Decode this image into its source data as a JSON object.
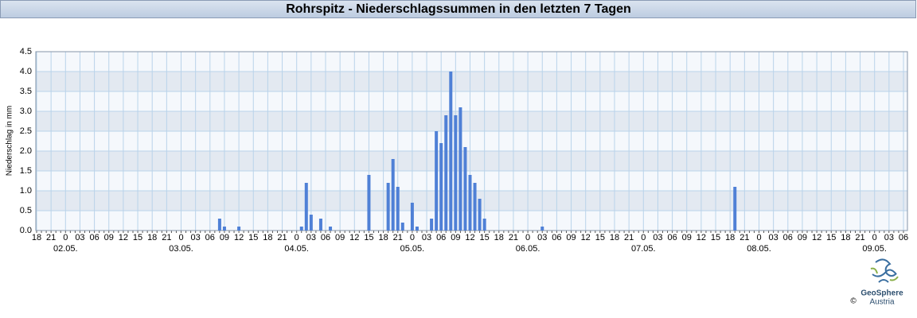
{
  "chart_data": {
    "type": "bar",
    "title": "Rohrspitz - Niederschlagssummen in den letzten 7 Tagen",
    "y_label": "Niederschlag in mm",
    "color": "#4f80d6",
    "ylim": [
      0,
      4.5
    ],
    "yticks": [
      {
        "value": 0,
        "label": "0.0"
      },
      0.5,
      {
        "value": 1,
        "label": "1.0"
      },
      1.5,
      {
        "value": 2,
        "label": "2.0"
      },
      2.5,
      {
        "value": 3,
        "label": "3.0"
      },
      3.5,
      {
        "value": 4,
        "label": "4.0"
      },
      4.5
    ],
    "grid": true,
    "categories": [
      "18",
      null,
      null,
      "21",
      null,
      null,
      "0",
      null,
      null,
      "03",
      null,
      null,
      "06",
      null,
      null,
      "09",
      null,
      null,
      "12",
      null,
      null,
      "15",
      null,
      null,
      "18",
      null,
      null,
      "21",
      null,
      null,
      "0",
      null,
      null,
      "03",
      null,
      null,
      "06",
      null,
      null,
      "09",
      null,
      null,
      "12",
      null,
      null,
      "15",
      null,
      null,
      "18",
      null,
      null,
      "21",
      null,
      null,
      "0",
      null,
      null,
      "03",
      null,
      null,
      "06",
      null,
      null,
      "09",
      null,
      null,
      "12",
      null,
      null,
      "15",
      null,
      null,
      "18",
      null,
      null,
      "21",
      null,
      null,
      "0",
      null,
      null,
      "03",
      null,
      null,
      "06",
      null,
      null,
      "09",
      null,
      null,
      "12",
      null,
      null,
      "15",
      null,
      null,
      "18",
      null,
      null,
      "21",
      null,
      null,
      "0",
      null,
      null,
      "03",
      null,
      null,
      "06",
      null,
      null,
      "09",
      null,
      null,
      "12",
      null,
      null,
      "15",
      null,
      null,
      "18",
      null,
      null,
      "21",
      null,
      null,
      "0",
      null,
      null,
      "03",
      null,
      null,
      "06",
      null,
      null,
      "09",
      null,
      null,
      "12",
      null,
      null,
      "15",
      null,
      null,
      "18",
      null,
      null,
      "21",
      null,
      null,
      "0",
      null,
      null,
      "03",
      null,
      null,
      "06",
      null,
      null,
      "09",
      null,
      null,
      "12",
      null,
      null,
      "15",
      null,
      null,
      "18",
      null,
      null,
      "21",
      null,
      null,
      "0",
      null,
      null,
      "03",
      null,
      null,
      "06"
    ],
    "x_dates": [
      "02.05.",
      "03.05.",
      "04.05.",
      "05.05.",
      "06.05.",
      "07.05.",
      "08.05.",
      "09.05."
    ],
    "values": [
      0,
      0,
      0,
      0,
      0,
      0,
      0,
      0,
      0,
      0,
      0,
      0,
      0,
      0,
      0,
      0,
      0,
      0,
      0,
      0,
      0,
      0,
      0,
      0,
      0,
      0,
      0,
      0,
      0,
      0,
      0,
      0,
      0,
      0,
      0,
      0,
      0,
      0,
      0.3,
      0.1,
      0,
      0,
      0.1,
      0,
      0,
      0,
      0,
      0,
      0,
      0,
      0,
      0,
      0,
      0,
      0,
      0.1,
      1.2,
      0.4,
      0,
      0.3,
      0,
      0.1,
      0,
      0,
      0,
      0,
      0,
      0,
      0,
      1.4,
      0,
      0,
      0,
      1.2,
      1.8,
      1.1,
      0.2,
      0,
      0.7,
      0.1,
      0,
      0,
      0.3,
      2.5,
      2.2,
      2.9,
      4.0,
      2.9,
      3.1,
      2.1,
      1.4,
      1.2,
      0.8,
      0.3,
      0,
      0,
      0,
      0,
      0,
      0,
      0,
      0,
      0,
      0,
      0,
      0.1,
      0,
      0,
      0,
      0,
      0,
      0,
      0,
      0,
      0,
      0,
      0,
      0,
      0,
      0,
      0,
      0,
      0,
      0,
      0,
      0,
      0,
      0,
      0,
      0,
      0,
      0,
      0,
      0,
      0,
      0,
      0,
      0,
      0,
      0,
      0,
      0,
      0,
      0,
      0,
      1.1,
      0,
      0,
      0,
      0,
      0,
      0,
      0,
      0,
      0,
      0,
      0,
      0,
      0,
      0,
      0,
      0,
      0,
      0,
      0,
      0,
      0,
      0,
      0,
      0,
      0,
      0,
      0,
      0,
      0,
      0,
      0,
      0,
      0,
      0,
      0
    ],
    "logo": {
      "name": "GeoSphere",
      "sub": "Austria",
      "copyright": "©"
    }
  }
}
